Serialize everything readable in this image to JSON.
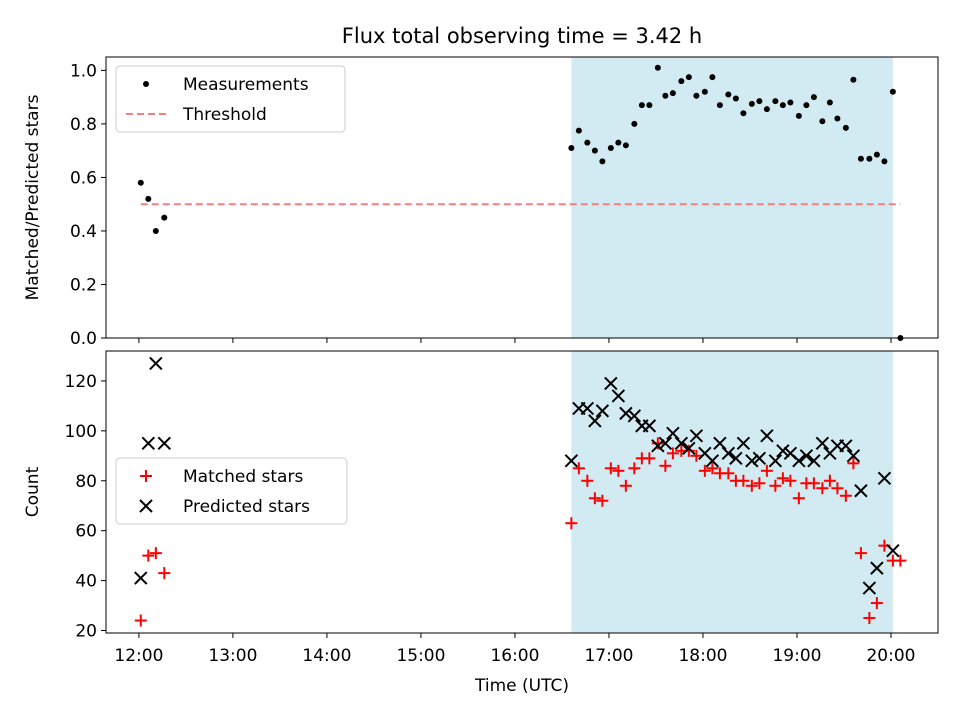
{
  "chart_data": {
    "type": "scatter",
    "title": "Flux total observing time = 3.42 h",
    "xlabel": "Time (UTC)",
    "x_ticks": [
      "12:00",
      "13:00",
      "14:00",
      "15:00",
      "16:00",
      "17:00",
      "18:00",
      "19:00",
      "20:00"
    ],
    "xlim_hours": [
      11.65,
      20.5
    ],
    "shaded_span_hours": [
      16.6,
      20.02
    ],
    "shade_color": "#add8e6",
    "panels": [
      {
        "ylabel": "Matched/Predicted stars",
        "ylim": [
          0,
          1.05
        ],
        "y_ticks": [
          "0.0",
          "0.2",
          "0.4",
          "0.6",
          "0.8",
          "1.0"
        ],
        "legend": {
          "placement": "upper-left",
          "entries": [
            "Measurements",
            "Threshold"
          ]
        },
        "series": [
          {
            "name": "Measurements",
            "marker": "dot",
            "color": "#000000",
            "x": [
              12.02,
              12.1,
              12.18,
              12.27,
              16.6,
              16.68,
              16.77,
              16.85,
              16.93,
              17.02,
              17.1,
              17.18,
              17.27,
              17.35,
              17.43,
              17.52,
              17.6,
              17.68,
              17.77,
              17.85,
              17.93,
              18.02,
              18.1,
              18.18,
              18.27,
              18.35,
              18.43,
              18.52,
              18.6,
              18.68,
              18.77,
              18.85,
              18.93,
              19.02,
              19.1,
              19.18,
              19.27,
              19.35,
              19.43,
              19.52,
              19.6,
              19.68,
              19.77,
              19.85,
              19.93,
              20.02,
              20.1
            ],
            "y": [
              0.58,
              0.52,
              0.4,
              0.45,
              0.71,
              0.775,
              0.73,
              0.7,
              0.66,
              0.71,
              0.73,
              0.72,
              0.8,
              0.87,
              0.87,
              1.01,
              0.905,
              0.915,
              0.96,
              0.975,
              0.905,
              0.92,
              0.975,
              0.87,
              0.91,
              0.895,
              0.84,
              0.875,
              0.885,
              0.855,
              0.885,
              0.87,
              0.88,
              0.83,
              0.87,
              0.9,
              0.81,
              0.88,
              0.82,
              0.785,
              0.965,
              0.67,
              0.67,
              0.685,
              0.66,
              0.92,
              0.0
            ]
          },
          {
            "name": "Threshold",
            "style": "dashed",
            "color": "#f08080",
            "x": [
              12.02,
              20.1
            ],
            "y": [
              0.5,
              0.5
            ]
          }
        ]
      },
      {
        "ylabel": "Count",
        "ylim": [
          19,
          132
        ],
        "y_ticks": [
          "20",
          "40",
          "60",
          "80",
          "100",
          "120"
        ],
        "legend": {
          "placement": "center-left",
          "entries": [
            "Matched stars",
            "Predicted stars"
          ]
        },
        "series": [
          {
            "name": "Matched stars",
            "marker": "plus",
            "color": "#ff0000",
            "x": [
              12.02,
              12.1,
              12.18,
              12.27,
              16.6,
              16.68,
              16.77,
              16.85,
              16.93,
              17.02,
              17.1,
              17.18,
              17.27,
              17.35,
              17.43,
              17.52,
              17.6,
              17.68,
              17.77,
              17.85,
              17.93,
              18.02,
              18.1,
              18.18,
              18.27,
              18.35,
              18.43,
              18.52,
              18.6,
              18.68,
              18.77,
              18.85,
              18.93,
              19.02,
              19.1,
              19.18,
              19.27,
              19.35,
              19.43,
              19.52,
              19.6,
              19.68,
              19.77,
              19.85,
              19.93,
              20.02,
              20.1
            ],
            "y": [
              24,
              50,
              51,
              43,
              63,
              85,
              80,
              73,
              72,
              85,
              84,
              78,
              85,
              89,
              89,
              95,
              86,
              91,
              92,
              92,
              90,
              84,
              85,
              83,
              83,
              80,
              80,
              78,
              79,
              84,
              78,
              81,
              80,
              73,
              79,
              79,
              77,
              80,
              77,
              74,
              87,
              51,
              25,
              31,
              54,
              48,
              48
            ]
          },
          {
            "name": "Predicted stars",
            "marker": "x",
            "color": "#000000",
            "x": [
              12.02,
              12.1,
              12.18,
              12.27,
              16.6,
              16.68,
              16.77,
              16.85,
              16.93,
              17.02,
              17.1,
              17.18,
              17.27,
              17.35,
              17.43,
              17.52,
              17.6,
              17.68,
              17.77,
              17.85,
              17.93,
              18.02,
              18.1,
              18.18,
              18.27,
              18.35,
              18.43,
              18.52,
              18.6,
              18.68,
              18.77,
              18.85,
              18.93,
              19.02,
              19.1,
              19.18,
              19.27,
              19.35,
              19.43,
              19.52,
              19.6,
              19.68,
              19.77,
              19.85,
              19.93,
              20.02
            ],
            "y": [
              41,
              95,
              127,
              95,
              88,
              109,
              109,
              104,
              108,
              119,
              114,
              107,
              106,
              102,
              102,
              94,
              95,
              99,
              95,
              93,
              98,
              91,
              88,
              95,
              91,
              89,
              95,
              88,
              89,
              98,
              88,
              92,
              91,
              88,
              90,
              88,
              95,
              91,
              94,
              94,
              90,
              76,
              37,
              45,
              81,
              52
            ]
          }
        ]
      }
    ]
  }
}
